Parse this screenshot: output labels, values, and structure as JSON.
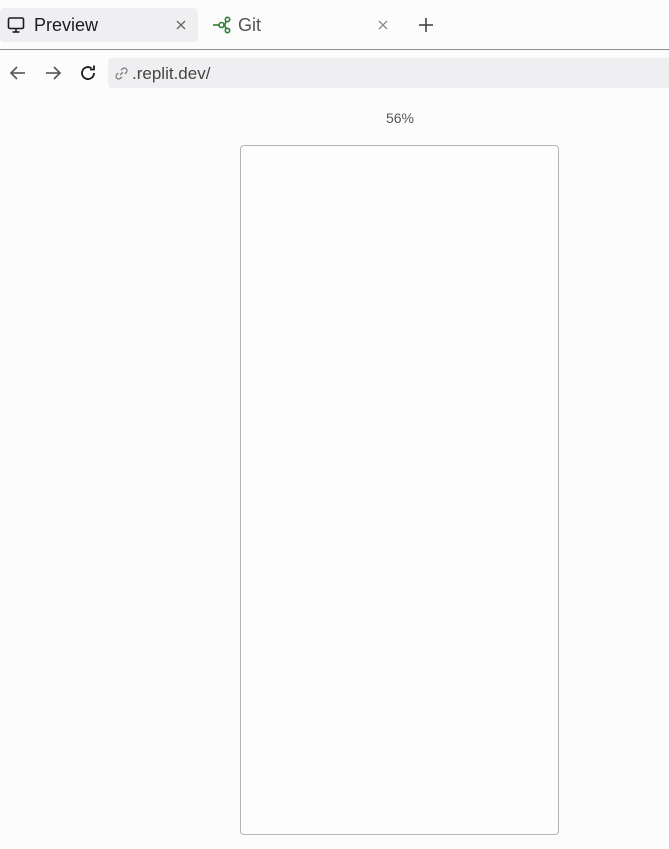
{
  "tabs": [
    {
      "label": "Preview",
      "icon": "monitor-icon",
      "active": true
    },
    {
      "label": "Git",
      "icon": "git-branch-icon",
      "active": false
    }
  ],
  "address": {
    "url": ".replit.dev/"
  },
  "preview": {
    "zoom": "56%"
  },
  "colors": {
    "git_icon": "#2e7d32",
    "tab_active_bg": "#efeff1"
  }
}
